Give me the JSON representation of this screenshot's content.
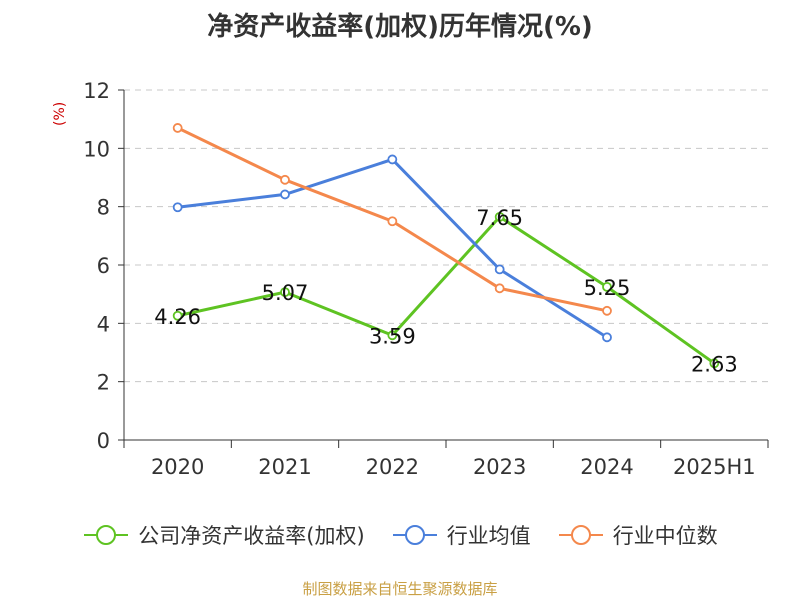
{
  "title": "净资产收益率(加权)历年情况(%)",
  "unit": "(%)",
  "source": "制图数据来自恒生聚源数据库",
  "chart_data": {
    "type": "line",
    "categories": [
      "2020",
      "2021",
      "2022",
      "2023",
      "2024",
      "2025H1"
    ],
    "ylim": [
      0,
      12
    ],
    "yticks": [
      0,
      2,
      4,
      6,
      8,
      10,
      12
    ],
    "grid": true,
    "legend_position": "bottom",
    "series": [
      {
        "name": "公司净资产收益率(加权)",
        "color": "#5ec322",
        "values": [
          4.26,
          5.07,
          3.59,
          7.65,
          5.25,
          2.63
        ],
        "labels": [
          "4.26",
          "5.07",
          "3.59",
          "7.65",
          "5.25",
          "2.63"
        ]
      },
      {
        "name": "行业均值",
        "color": "#4a7fdb",
        "values": [
          7.98,
          8.42,
          9.62,
          5.85,
          3.52,
          null
        ]
      },
      {
        "name": "行业中位数",
        "color": "#f4884c",
        "values": [
          10.7,
          8.92,
          7.5,
          5.2,
          4.43,
          null
        ]
      }
    ]
  }
}
